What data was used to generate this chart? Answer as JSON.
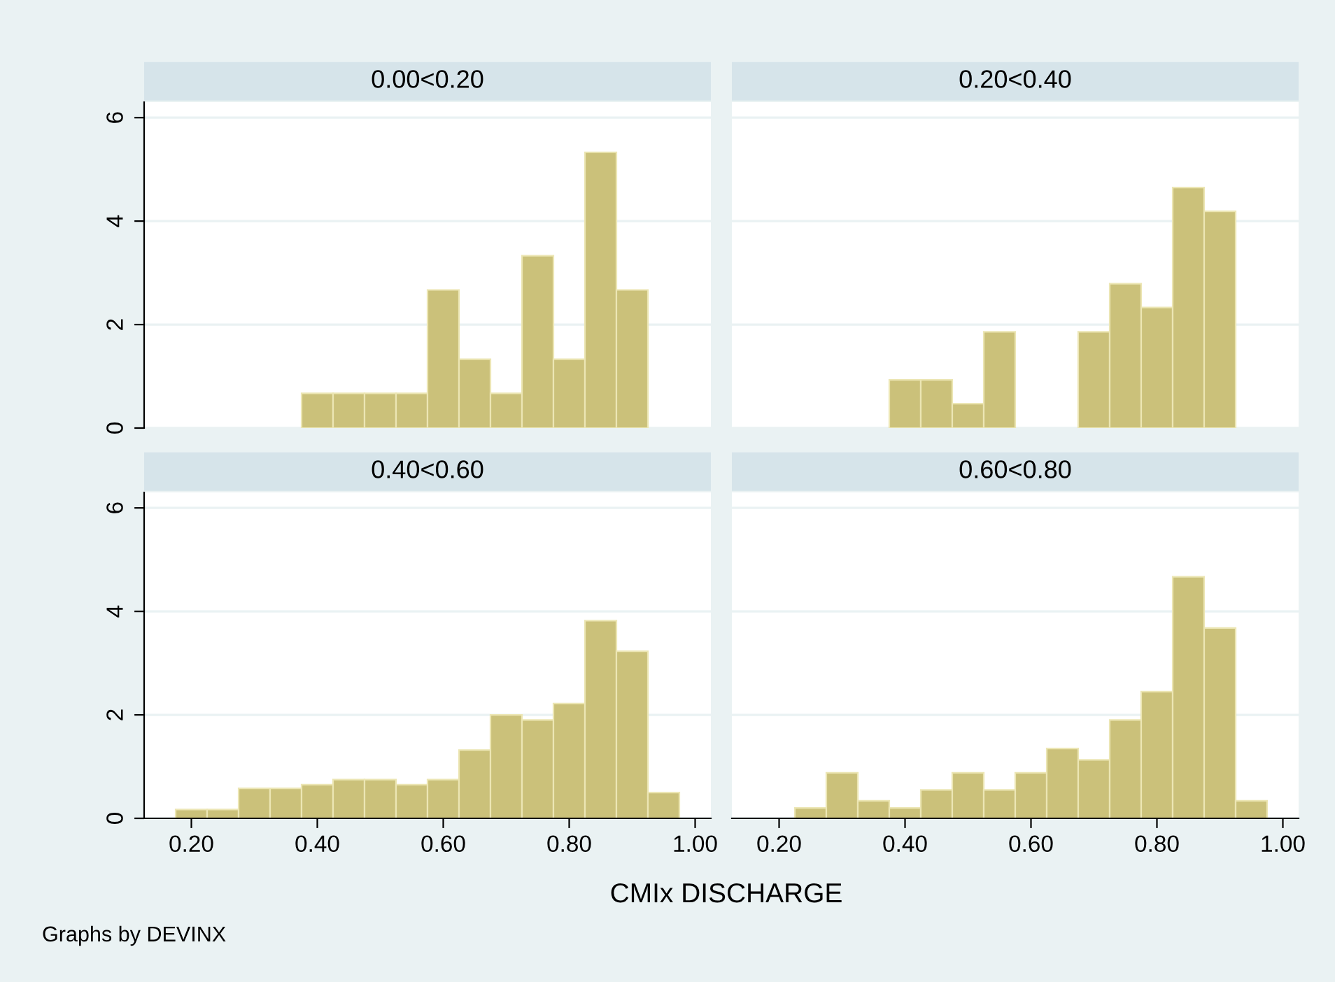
{
  "chart_data": [
    {
      "type": "histogram",
      "title": "0.00<0.20",
      "bins": [
        0.375,
        0.425,
        0.475,
        0.525,
        0.575,
        0.625,
        0.675,
        0.725,
        0.775,
        0.825,
        0.875,
        0.925
      ],
      "values": [
        0.67,
        0.67,
        0.67,
        0.67,
        2.67,
        1.33,
        0.67,
        3.33,
        1.33,
        5.33,
        2.67
      ],
      "color": "#cbc17a",
      "xlim": [
        0.125,
        1.025
      ],
      "ylim": [
        0,
        6.3
      ],
      "yticks": [
        0,
        2,
        4,
        6
      ],
      "grid": "y",
      "tick_labels": "y"
    },
    {
      "type": "histogram",
      "title": "0.20<0.40",
      "bins": [
        0.375,
        0.425,
        0.475,
        0.525,
        0.575,
        0.625,
        0.675,
        0.725,
        0.775,
        0.825,
        0.875,
        0.925
      ],
      "values": [
        0.93,
        0.93,
        0.47,
        1.86,
        0,
        0,
        1.86,
        2.79,
        2.33,
        4.65,
        4.19
      ],
      "color": "#cbc17a",
      "xlim": [
        0.125,
        1.025
      ],
      "ylim": [
        0,
        6.3
      ],
      "yticks": [
        0,
        2,
        4,
        6
      ],
      "grid": "y",
      "tick_labels": false
    },
    {
      "type": "histogram",
      "title": "0.40<0.60",
      "bins": [
        0.175,
        0.225,
        0.275,
        0.325,
        0.375,
        0.425,
        0.475,
        0.525,
        0.575,
        0.625,
        0.675,
        0.725,
        0.775,
        0.825,
        0.875,
        0.925,
        0.975
      ],
      "values": [
        0.17,
        0.17,
        0.58,
        0.58,
        0.65,
        0.75,
        0.75,
        0.65,
        0.75,
        1.32,
        2.0,
        1.9,
        2.22,
        3.82,
        3.23,
        0.5
      ],
      "color": "#cbc17a",
      "xlim": [
        0.125,
        1.025
      ],
      "ylim": [
        0,
        6.3
      ],
      "xticks": [
        {
          "value": 0.2,
          "label": "0.20"
        },
        {
          "value": 0.4,
          "label": "0.40"
        },
        {
          "value": 0.6,
          "label": "0.60"
        },
        {
          "value": 0.8,
          "label": "0.80"
        },
        {
          "value": 1.0,
          "label": "1.00"
        }
      ],
      "yticks": [
        0,
        2,
        4,
        6
      ],
      "grid": "y",
      "xlabel": "CMIx DISCHARGE",
      "annotations": [
        "Graphs by DEVINX"
      ]
    },
    {
      "type": "histogram",
      "title": "0.60<0.80",
      "bins": [
        0.225,
        0.275,
        0.325,
        0.375,
        0.425,
        0.475,
        0.525,
        0.575,
        0.625,
        0.675,
        0.725,
        0.775,
        0.825,
        0.875,
        0.925,
        0.975
      ],
      "values": [
        0.2,
        0.88,
        0.34,
        0.2,
        0.55,
        0.88,
        0.55,
        0.88,
        1.35,
        1.13,
        1.9,
        2.45,
        4.67,
        3.68,
        0.34
      ],
      "color": "#cbc17a",
      "xlim": [
        0.125,
        1.025
      ],
      "ylim": [
        0,
        6.3
      ],
      "xticks": [
        {
          "value": 0.2,
          "label": "0.20"
        },
        {
          "value": 0.4,
          "label": "0.40"
        },
        {
          "value": 0.6,
          "label": "0.60"
        },
        {
          "value": 0.8,
          "label": "0.80"
        },
        {
          "value": 1.0,
          "label": "1.00"
        }
      ],
      "yticks": [
        0,
        2,
        4,
        6
      ],
      "grid": "y",
      "tick_labels": "x"
    }
  ]
}
